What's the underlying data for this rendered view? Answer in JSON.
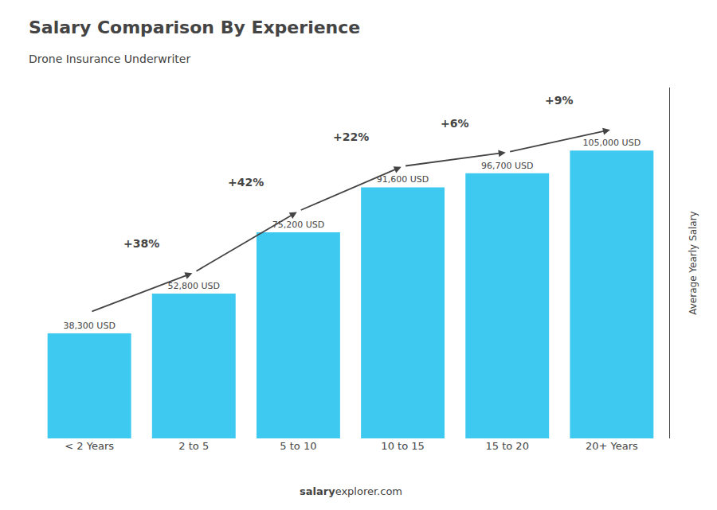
{
  "chart_data": {
    "type": "bar",
    "title": "Salary Comparison By Experience",
    "subtitle": "Drone Insurance Underwriter",
    "categories": [
      "< 2 Years",
      "2 to 5",
      "5 to 10",
      "10 to 15",
      "15 to 20",
      "20+ Years"
    ],
    "values": [
      38300,
      52800,
      75200,
      91600,
      96700,
      105000
    ],
    "value_labels": [
      "38,300 USD",
      "52,800 USD",
      "75,200 USD",
      "91,600 USD",
      "96,700 USD",
      "105,000 USD"
    ],
    "data_labels": true,
    "color": "#3EC9F0",
    "ylabel": "Average Yearly Salary",
    "ylim": [
      0,
      128000
    ],
    "tick_labels": "x",
    "grid": false,
    "annotations": [
      "+38%",
      "+42%",
      "+22%",
      "+6%",
      "+9%"
    ],
    "footer": [
      "salary",
      "explorer.com"
    ]
  }
}
